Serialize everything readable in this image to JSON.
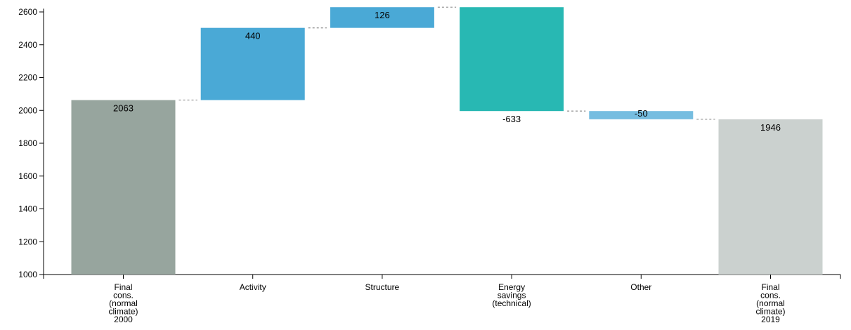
{
  "chart_data": {
    "type": "waterfall",
    "title": "",
    "xlabel": "",
    "ylabel": "",
    "ylim": [
      1000,
      2620
    ],
    "yticks": [
      1000,
      1200,
      1400,
      1600,
      1800,
      2000,
      2200,
      2400,
      2600
    ],
    "grid": false,
    "legend": "none",
    "categories": [
      [
        "Final",
        "cons.",
        "(normal",
        "climate)",
        "2000"
      ],
      [
        "Activity"
      ],
      [
        "Structure"
      ],
      [
        "Energy",
        "savings",
        "(technical)"
      ],
      [
        "Other"
      ],
      [
        "Final",
        "cons.",
        "(normal",
        "climate)",
        "2019"
      ]
    ],
    "bars": [
      {
        "kind": "total",
        "value": 2063,
        "label": "2063",
        "color": "#97a59e"
      },
      {
        "kind": "delta",
        "value": 440,
        "label": "440",
        "color": "#4aa9d6"
      },
      {
        "kind": "delta",
        "value": 126,
        "label": "126",
        "color": "#4aa9d6"
      },
      {
        "kind": "delta",
        "value": -633,
        "label": "-633",
        "color": "#28b8b3"
      },
      {
        "kind": "delta",
        "value": -50,
        "label": "-50",
        "color": "#76bde0"
      },
      {
        "kind": "total",
        "value": 1946,
        "label": "1946",
        "color": "#cbd1cf"
      }
    ],
    "connector_color": "#999999"
  }
}
